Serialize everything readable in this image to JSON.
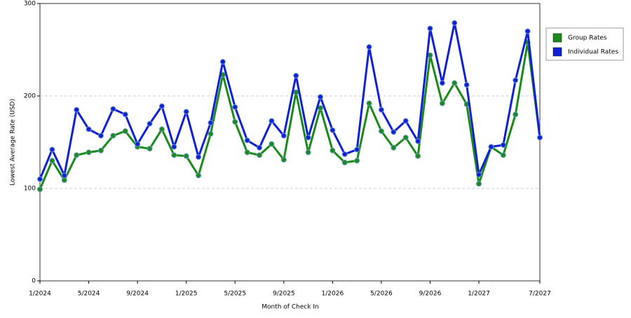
{
  "chart_data": {
    "type": "line",
    "xlabel": "Month of Check In",
    "ylabel": "Lowest Average Rate (USD)",
    "categories": [
      "1/2024",
      null,
      null,
      null,
      "5/2024",
      null,
      null,
      null,
      "9/2024",
      null,
      null,
      null,
      "1/2025",
      null,
      null,
      null,
      "5/2025",
      null,
      null,
      null,
      "9/2025",
      null,
      null,
      null,
      "1/2026",
      null,
      null,
      null,
      "5/2026",
      null,
      null,
      null,
      "9/2026",
      null,
      null,
      null,
      "1/2027",
      null,
      null,
      null,
      null,
      "7/2027"
    ],
    "series": [
      {
        "name": "Group Rates",
        "color": "#1a8a1a",
        "values": [
          99,
          130,
          109,
          136,
          139,
          141,
          157,
          162,
          145,
          143,
          164,
          136,
          135,
          114,
          159,
          223,
          172,
          139,
          136,
          148,
          131,
          204,
          139,
          187,
          141,
          128,
          130,
          192,
          162,
          144,
          155,
          135,
          244,
          192,
          214,
          191,
          105,
          145,
          136,
          180,
          258,
          155
        ]
      },
      {
        "name": "Individual Rates",
        "color": "#1020d8",
        "values": [
          110,
          142,
          114,
          185,
          164,
          157,
          186,
          180,
          148,
          170,
          189,
          145,
          183,
          134,
          171,
          237,
          188,
          152,
          144,
          173,
          157,
          222,
          155,
          199,
          163,
          137,
          142,
          253,
          185,
          161,
          173,
          151,
          273,
          214,
          279,
          212,
          115,
          145,
          147,
          217,
          270,
          155
        ]
      }
    ],
    "ylim": [
      0,
      300
    ],
    "yticks": [
      0,
      100,
      200,
      300
    ],
    "grid": true,
    "legend": "upper right"
  }
}
